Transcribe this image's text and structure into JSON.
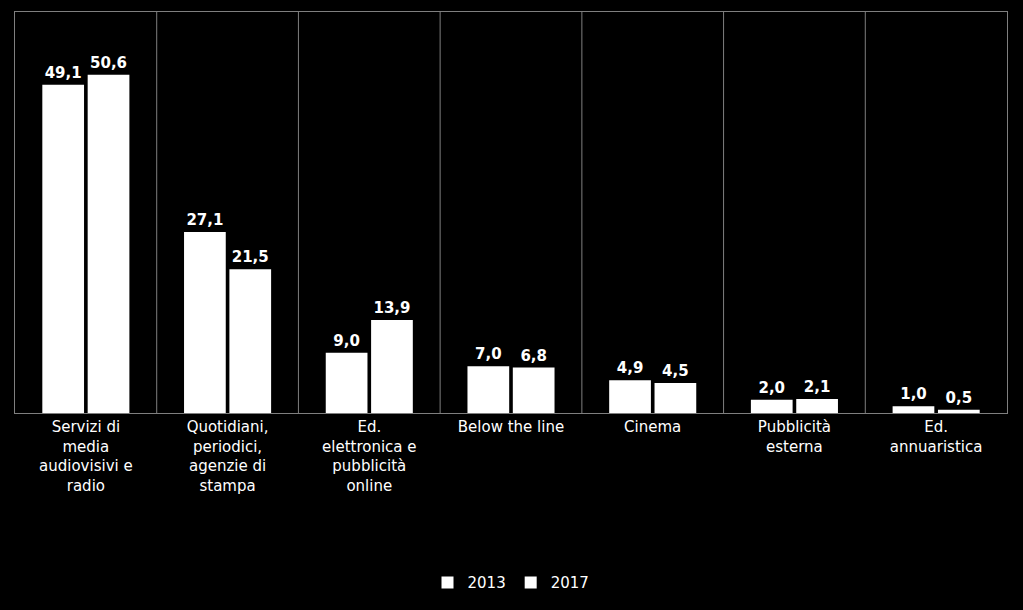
{
  "chart_data": {
    "type": "bar",
    "categories": [
      "Servizi di media audiovisivi e radio",
      "Quotidiani, periodici, agenzie di stampa",
      "Ed. elettronica e pubblicità online",
      "Below the line",
      "Cinema",
      "Pubblicità esterna",
      "Ed. annuaristica"
    ],
    "series": [
      {
        "name": "2013",
        "color": "#ffffff",
        "values": [
          49.1,
          27.1,
          9.0,
          7.0,
          4.9,
          2.0,
          1.0
        ],
        "value_labels": [
          "49,1",
          "27,1",
          "9,0",
          "7,0",
          "4,9",
          "2,0",
          "1,0"
        ]
      },
      {
        "name": "2017",
        "color": "#ffffff",
        "values": [
          50.6,
          21.5,
          13.9,
          6.8,
          4.5,
          2.1,
          0.5
        ],
        "value_labels": [
          "50,6",
          "21,5",
          "13,9",
          "6,8",
          "4,5",
          "2,1",
          "0,5"
        ]
      }
    ],
    "ylim": [
      0,
      60
    ],
    "data_labels": true,
    "tick_labels": "x",
    "legend": "bottom"
  }
}
